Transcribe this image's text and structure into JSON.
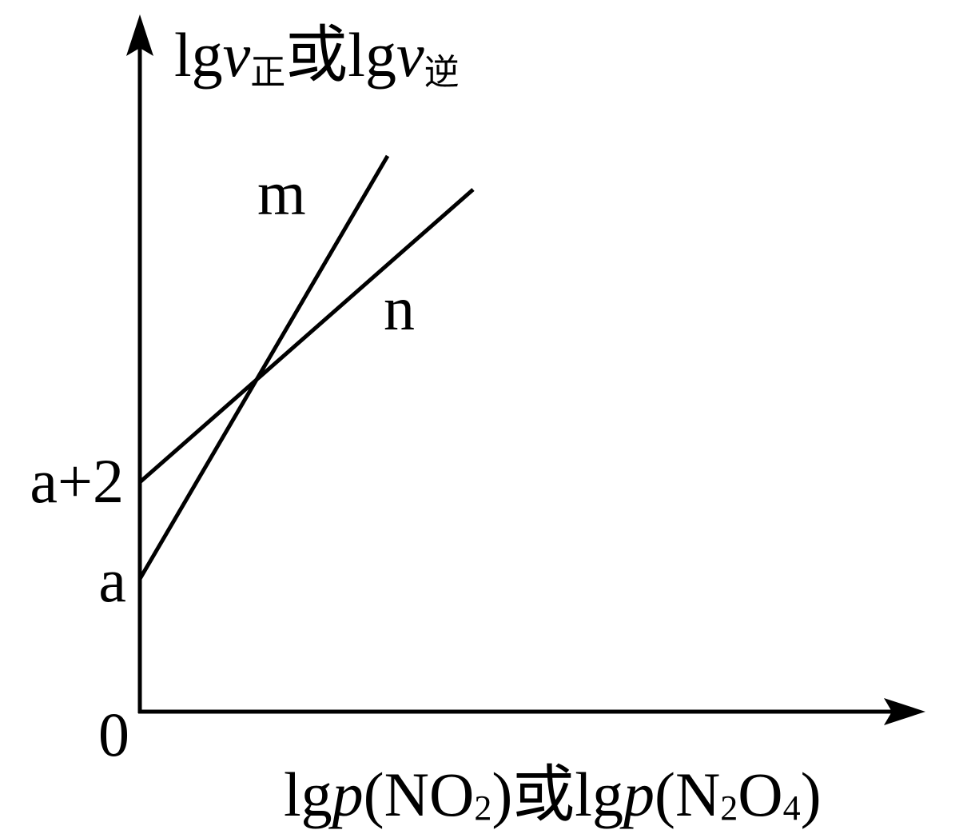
{
  "y_axis_label": {
    "parts": [
      "lg",
      "v",
      "正",
      "或lg",
      "v",
      "逆"
    ]
  },
  "x_axis_label": {
    "parts": [
      "lg",
      "p",
      "(NO",
      "2",
      ")或lg",
      "p",
      "(N",
      "2",
      "O",
      "4",
      ")"
    ]
  },
  "tick_labels": [
    "a+2",
    "a",
    "0"
  ],
  "line_labels": [
    "m",
    "n"
  ]
}
